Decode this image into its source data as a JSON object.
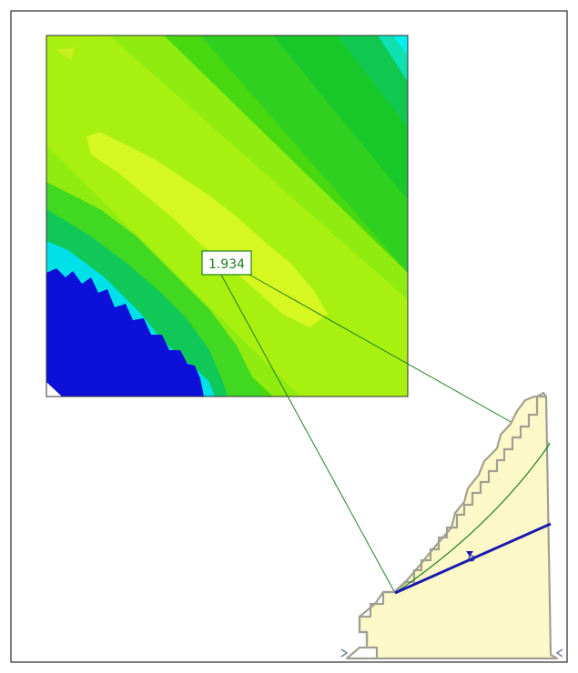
{
  "figure": {
    "safety_factor_label": "1.934",
    "contour_palette": {
      "blue": "#1010e0",
      "cyan": "#00e8f0",
      "green": "#20d020",
      "lime": "#a0f010",
      "yellow_green": "#d8f820",
      "zoom_line": "#208020",
      "slip_surface": "#1a1ab0",
      "slope_fill": "#fdf8c8",
      "slope_edge": "#a0a090"
    },
    "icons": {
      "water_table_marker": "triangle-down",
      "support_marker": "arrow-tick"
    }
  }
}
